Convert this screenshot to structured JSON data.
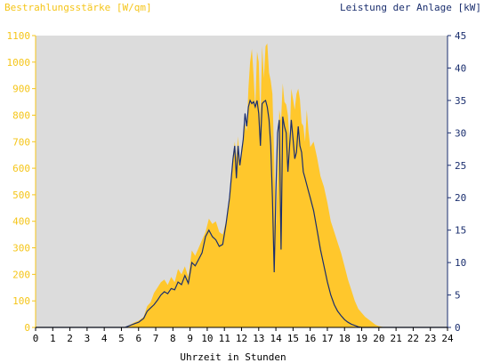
{
  "chart_data": {
    "type": "area",
    "title_left": "Bestrahlungsstärke [W/qm]",
    "title_right": "Leistung der Anlage [kW]",
    "xlabel": "Uhrzeit in Stunden",
    "xlim": [
      0,
      24
    ],
    "x_ticks": [
      "0",
      "1",
      "2",
      "3",
      "4",
      "5",
      "6",
      "7",
      "8",
      "9",
      "10",
      "11",
      "12",
      "13",
      "14",
      "15",
      "16",
      "17",
      "18",
      "19",
      "20",
      "21",
      "22",
      "23",
      "24"
    ],
    "y_left": {
      "lim": [
        0,
        1100
      ],
      "ticks": [
        "0",
        "100",
        "200",
        "300",
        "400",
        "500",
        "600",
        "700",
        "800",
        "900",
        "1000",
        "1100"
      ]
    },
    "y_right": {
      "lim": [
        0,
        45
      ],
      "ticks": [
        "0",
        "5",
        "10",
        "15",
        "20",
        "25",
        "30",
        "35",
        "40",
        "45"
      ]
    },
    "colors": {
      "plot_bg": "#dcdcdc",
      "irradiance_fill": "#ffc72c",
      "power_line": "#1a2e6e",
      "left_axis": "#f5c518",
      "right_axis": "#1a2e6e"
    },
    "series": [
      {
        "axis": "left",
        "style": "area",
        "x": [
          5.2,
          5.5,
          5.8,
          6.0,
          6.3,
          6.5,
          6.7,
          6.9,
          7.1,
          7.3,
          7.5,
          7.7,
          7.9,
          8.1,
          8.3,
          8.5,
          8.7,
          8.9,
          9.1,
          9.3,
          9.5,
          9.7,
          9.9,
          10.1,
          10.3,
          10.5,
          10.7,
          10.9,
          11.1,
          11.3,
          11.5,
          11.6,
          11.7,
          11.8,
          11.9,
          12.0,
          12.1,
          12.2,
          12.3,
          12.4,
          12.5,
          12.6,
          12.7,
          12.8,
          12.9,
          13.0,
          13.1,
          13.2,
          13.3,
          13.4,
          13.5,
          13.6,
          13.7,
          13.8,
          13.9,
          14.0,
          14.1,
          14.2,
          14.3,
          14.4,
          14.5,
          14.6,
          14.7,
          14.8,
          14.9,
          15.0,
          15.1,
          15.2,
          15.3,
          15.4,
          15.5,
          15.6,
          15.7,
          15.8,
          15.9,
          16.0,
          16.2,
          16.4,
          16.6,
          16.8,
          17.0,
          17.2,
          17.4,
          17.6,
          17.8,
          18.0,
          18.2,
          18.4,
          18.6,
          18.8,
          19.0,
          19.2,
          19.4,
          19.6,
          19.8,
          20.0,
          20.2,
          20.4,
          20.6
        ],
        "values": [
          0,
          10,
          20,
          25,
          40,
          80,
          95,
          130,
          150,
          170,
          180,
          160,
          190,
          170,
          220,
          200,
          230,
          190,
          290,
          270,
          300,
          330,
          360,
          410,
          390,
          400,
          360,
          350,
          400,
          480,
          650,
          700,
          640,
          720,
          600,
          680,
          700,
          770,
          740,
          900,
          1000,
          1050,
          950,
          830,
          1040,
          1000,
          780,
          1060,
          940,
          1060,
          1070,
          960,
          930,
          880,
          640,
          380,
          560,
          820,
          780,
          920,
          850,
          840,
          800,
          700,
          900,
          860,
          820,
          880,
          900,
          860,
          770,
          760,
          700,
          820,
          740,
          680,
          700,
          640,
          570,
          530,
          470,
          400,
          360,
          320,
          280,
          230,
          180,
          140,
          100,
          70,
          55,
          40,
          30,
          20,
          10,
          5,
          2,
          0,
          0
        ]
      },
      {
        "axis": "right",
        "style": "line",
        "x": [
          5.2,
          5.5,
          5.8,
          6.0,
          6.3,
          6.5,
          6.7,
          6.9,
          7.1,
          7.3,
          7.5,
          7.7,
          7.9,
          8.1,
          8.3,
          8.5,
          8.7,
          8.9,
          9.1,
          9.3,
          9.5,
          9.7,
          9.9,
          10.1,
          10.3,
          10.5,
          10.7,
          10.9,
          11.1,
          11.3,
          11.5,
          11.6,
          11.7,
          11.8,
          11.9,
          12.0,
          12.1,
          12.2,
          12.3,
          12.4,
          12.5,
          12.6,
          12.7,
          12.8,
          12.9,
          13.0,
          13.1,
          13.2,
          13.3,
          13.4,
          13.5,
          13.6,
          13.7,
          13.8,
          13.9,
          14.0,
          14.1,
          14.2,
          14.3,
          14.4,
          14.5,
          14.6,
          14.7,
          14.8,
          14.9,
          15.0,
          15.1,
          15.2,
          15.3,
          15.4,
          15.5,
          15.6,
          15.7,
          15.8,
          15.9,
          16.0,
          16.2,
          16.4,
          16.6,
          16.8,
          17.0,
          17.2,
          17.4,
          17.6,
          17.8,
          18.0,
          18.2,
          18.4,
          18.6,
          18.8,
          19.0,
          19.2,
          19.4,
          19.6,
          19.8,
          20.0,
          20.2,
          20.4,
          20.6
        ],
        "values": [
          0,
          0.3,
          0.6,
          0.8,
          1.4,
          2.5,
          3.0,
          3.5,
          4.2,
          5.0,
          5.5,
          5.2,
          6.0,
          5.8,
          7.0,
          6.6,
          8.0,
          6.8,
          10.0,
          9.5,
          10.5,
          11.5,
          14.0,
          15.0,
          14.0,
          13.5,
          12.5,
          12.8,
          16.0,
          20.0,
          26.0,
          28.0,
          23.0,
          28.0,
          25.0,
          27.0,
          29.0,
          33.0,
          31.0,
          34.0,
          35.0,
          34.5,
          34.8,
          34.0,
          35.0,
          33.0,
          28.0,
          34.5,
          34.8,
          35.0,
          34.0,
          32.0,
          28.0,
          20.0,
          8.5,
          21.0,
          30.0,
          32.0,
          12.0,
          32.5,
          31.0,
          30.0,
          24.0,
          28.0,
          32.0,
          29.0,
          26.0,
          27.0,
          31.0,
          28.0,
          27.0,
          24.0,
          23.0,
          22.0,
          21.0,
          20.0,
          18.0,
          15.0,
          12.0,
          9.5,
          7.0,
          5.0,
          3.5,
          2.5,
          1.8,
          1.2,
          0.8,
          0.5,
          0.3,
          0.1,
          0,
          0,
          0,
          0,
          0,
          0,
          0,
          0,
          0
        ]
      }
    ]
  }
}
